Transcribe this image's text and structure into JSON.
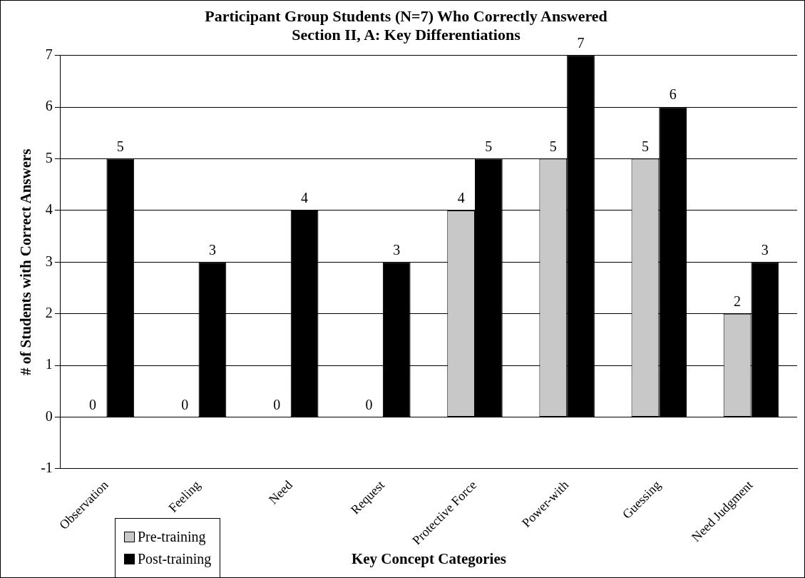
{
  "chart_data": {
    "type": "bar",
    "title": [
      "Participant Group Students (N=7) Who Correctly Answered",
      "Section II, A: Key Differentiations"
    ],
    "xlabel": "Key Concept Categories",
    "ylabel": "# of Students with Correct Answers",
    "categories": [
      "Observation",
      "Feeling",
      "Need",
      "Request",
      "Protective Force",
      "Power-with",
      "Guessing",
      "Need Judgment"
    ],
    "series": [
      {
        "name": "Pre-training",
        "color": "#c8c8c8",
        "values": [
          0,
          0,
          0,
          0,
          4,
          5,
          5,
          2
        ]
      },
      {
        "name": "Post-training",
        "color": "#000000",
        "values": [
          5,
          3,
          4,
          3,
          5,
          7,
          6,
          3
        ]
      }
    ],
    "ylim": [
      -1,
      7
    ],
    "yticks": [
      -1,
      0,
      1,
      2,
      3,
      4,
      5,
      6,
      7
    ],
    "grid": "y",
    "legend": "bottom left",
    "data_labels": true
  }
}
